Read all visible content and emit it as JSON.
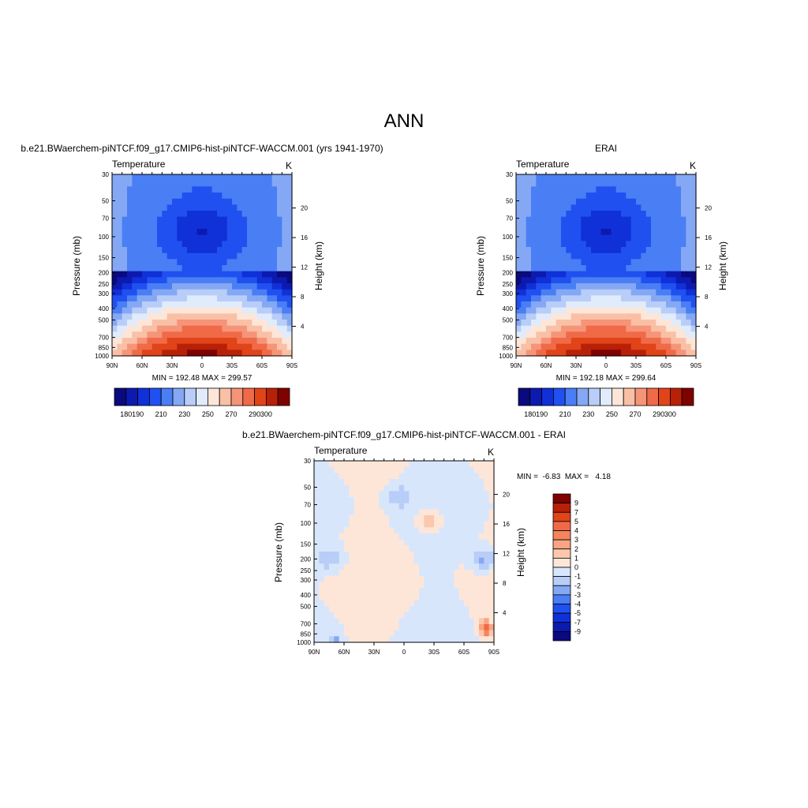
{
  "page": {
    "title": "ANN"
  },
  "colors": {
    "temperature_scale": [
      "#0a0a7e",
      "#0c1ab0",
      "#1030d8",
      "#2050f0",
      "#4a7ef5",
      "#85a8f5",
      "#b8cdf8",
      "#e0ebfc",
      "#fde6d8",
      "#f9c0a6",
      "#f69478",
      "#f06a48",
      "#e04418",
      "#b82008",
      "#7e0200"
    ],
    "difference_scale": [
      "#0a0a7e",
      "#0c1ab0",
      "#1030d8",
      "#2050f0",
      "#4a7ef5",
      "#85a8f5",
      "#b8cdf8",
      "#d8e6fc",
      "#fde6d8",
      "#fcc8ad",
      "#f9a482",
      "#f5845e",
      "#f06a48",
      "#e04418",
      "#b82008",
      "#7e0200"
    ]
  },
  "chart_data": [
    {
      "type": "heatmap",
      "id": "model",
      "title": "b.e21.BWaerchem-piNTCF.f09_g17.CMIP6-hist-piNTCF-WACCM.001 (yrs 1941-1970)",
      "left_label": "Temperature",
      "right_label": "K",
      "ylabel": "Pressure (mb)",
      "ylabel_right": "Height (km)",
      "x_ticks": [
        "90N",
        "60N",
        "30N",
        "0",
        "30S",
        "60S",
        "90S"
      ],
      "y_ticks": [
        30,
        50,
        70,
        100,
        150,
        200,
        250,
        300,
        400,
        500,
        700,
        850,
        1000
      ],
      "y_right_ticks": [
        4,
        8,
        12,
        16,
        20
      ],
      "ylim": [
        1000,
        30
      ],
      "xlim": [
        90,
        -90
      ],
      "stats": "MIN = 192.48  MAX = 299.57",
      "min": 192.48,
      "max": 299.57,
      "colorbar_labels": [
        "180",
        "190",
        "210",
        "230",
        "250",
        "270",
        "290",
        "300"
      ]
    },
    {
      "type": "heatmap",
      "id": "obs",
      "title": "ERAI",
      "left_label": "Temperature",
      "right_label": "K",
      "ylabel": "Pressure (mb)",
      "ylabel_right": "Height (km)",
      "x_ticks": [
        "90N",
        "60N",
        "30N",
        "0",
        "30S",
        "60S",
        "90S"
      ],
      "y_ticks": [
        30,
        50,
        70,
        100,
        150,
        200,
        250,
        300,
        400,
        500,
        700,
        850,
        1000
      ],
      "y_right_ticks": [
        4,
        8,
        12,
        16,
        20
      ],
      "ylim": [
        1000,
        30
      ],
      "xlim": [
        90,
        -90
      ],
      "stats": "MIN = 192.18  MAX = 299.64",
      "min": 192.18,
      "max": 299.64,
      "colorbar_labels": [
        "180",
        "190",
        "210",
        "230",
        "250",
        "270",
        "290",
        "300"
      ]
    },
    {
      "type": "heatmap",
      "id": "diff",
      "title": "b.e21.BWaerchem-piNTCF.f09_g17.CMIP6-hist-piNTCF-WACCM.001 - ERAI",
      "left_label": "Temperature",
      "right_label": "K",
      "ylabel": "Pressure (mb)",
      "ylabel_right": "Height (km)",
      "x_ticks": [
        "90N",
        "60N",
        "30N",
        "0",
        "30S",
        "60S",
        "90S"
      ],
      "y_ticks": [
        30,
        50,
        70,
        100,
        150,
        200,
        250,
        300,
        400,
        500,
        700,
        850,
        1000
      ],
      "y_right_ticks": [
        4,
        8,
        12,
        16,
        20
      ],
      "ylim": [
        1000,
        30
      ],
      "xlim": [
        90,
        -90
      ],
      "stats": "MIN =  -6.83  MAX =   4.18",
      "min": -6.83,
      "max": 4.18,
      "colorbar_labels": [
        "9",
        "7",
        "5",
        "4",
        "3",
        "2",
        "1",
        "0",
        "-1",
        "-2",
        "-3",
        "-4",
        "-5",
        "-7",
        "-9"
      ]
    }
  ]
}
